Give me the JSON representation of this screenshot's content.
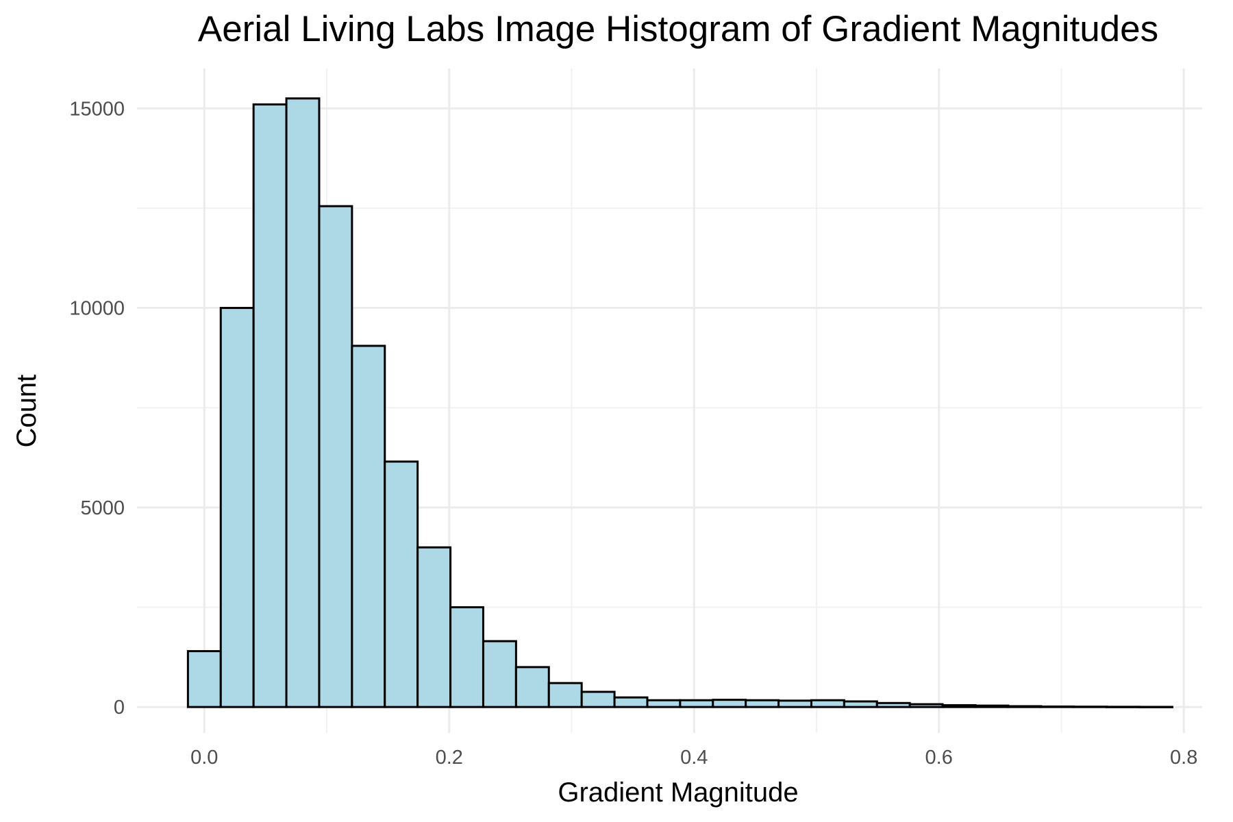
{
  "chart_data": {
    "type": "bar",
    "title": "Aerial Living Labs Image Histogram of Gradient Magnitudes",
    "xlabel": "Gradient Magnitude",
    "ylabel": "Count",
    "xlim": [
      -0.055,
      0.815
    ],
    "ylim": [
      -650,
      16000
    ],
    "x_ticks": [
      0.0,
      0.2,
      0.4,
      0.6,
      0.8
    ],
    "x_tick_labels": [
      "0.0",
      "0.2",
      "0.4",
      "0.6",
      "0.8"
    ],
    "y_ticks": [
      0,
      5000,
      10000,
      15000
    ],
    "y_tick_labels": [
      "0",
      "5000",
      "10000",
      "15000"
    ],
    "grid": true,
    "bar_fill": "#add8e6",
    "bar_edge": "#000000",
    "bins": [
      {
        "x0": -0.0134,
        "x1": 0.0134,
        "count": 1400
      },
      {
        "x0": 0.0134,
        "x1": 0.0402,
        "count": 10000
      },
      {
        "x0": 0.0402,
        "x1": 0.067,
        "count": 15100
      },
      {
        "x0": 0.067,
        "x1": 0.0938,
        "count": 15250
      },
      {
        "x0": 0.0938,
        "x1": 0.1206,
        "count": 12550
      },
      {
        "x0": 0.1206,
        "x1": 0.1474,
        "count": 9050
      },
      {
        "x0": 0.1474,
        "x1": 0.1742,
        "count": 6150
      },
      {
        "x0": 0.1742,
        "x1": 0.201,
        "count": 4000
      },
      {
        "x0": 0.201,
        "x1": 0.2278,
        "count": 2500
      },
      {
        "x0": 0.2278,
        "x1": 0.2546,
        "count": 1650
      },
      {
        "x0": 0.2546,
        "x1": 0.2814,
        "count": 1000
      },
      {
        "x0": 0.2814,
        "x1": 0.3082,
        "count": 600
      },
      {
        "x0": 0.3082,
        "x1": 0.335,
        "count": 380
      },
      {
        "x0": 0.335,
        "x1": 0.3618,
        "count": 240
      },
      {
        "x0": 0.3618,
        "x1": 0.3886,
        "count": 170
      },
      {
        "x0": 0.3886,
        "x1": 0.4154,
        "count": 170
      },
      {
        "x0": 0.4154,
        "x1": 0.4422,
        "count": 180
      },
      {
        "x0": 0.4422,
        "x1": 0.469,
        "count": 170
      },
      {
        "x0": 0.469,
        "x1": 0.4958,
        "count": 160
      },
      {
        "x0": 0.4958,
        "x1": 0.5226,
        "count": 170
      },
      {
        "x0": 0.5226,
        "x1": 0.5494,
        "count": 140
      },
      {
        "x0": 0.5494,
        "x1": 0.5762,
        "count": 100
      },
      {
        "x0": 0.5762,
        "x1": 0.603,
        "count": 70
      },
      {
        "x0": 0.603,
        "x1": 0.6298,
        "count": 45
      },
      {
        "x0": 0.6298,
        "x1": 0.6566,
        "count": 35
      },
      {
        "x0": 0.6566,
        "x1": 0.6834,
        "count": 20
      },
      {
        "x0": 0.6834,
        "x1": 0.7102,
        "count": 12
      },
      {
        "x0": 0.7102,
        "x1": 0.737,
        "count": 8
      },
      {
        "x0": 0.737,
        "x1": 0.7638,
        "count": 5
      },
      {
        "x0": 0.7638,
        "x1": 0.7906,
        "count": 3
      }
    ]
  }
}
